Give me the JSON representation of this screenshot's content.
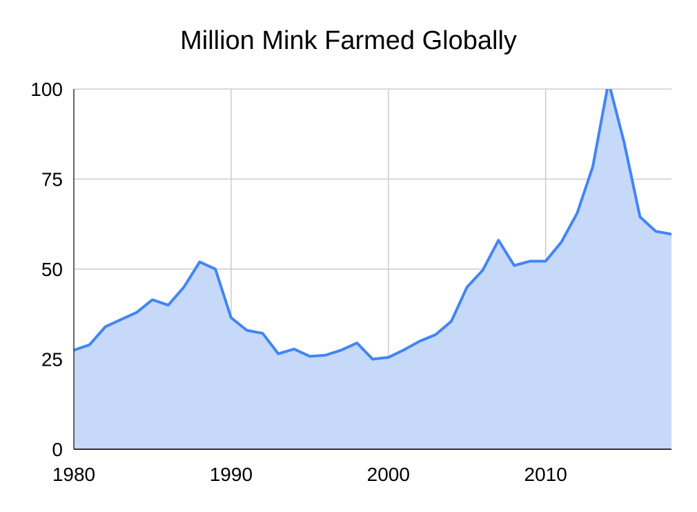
{
  "chart_data": {
    "type": "area",
    "title": "Million Mink Farmed Globally",
    "xlabel": "",
    "ylabel": "",
    "xlim": [
      1980,
      2018
    ],
    "ylim": [
      0,
      100
    ],
    "x_ticks": [
      "1980",
      "1990",
      "2000",
      "2010"
    ],
    "y_ticks": [
      "0",
      "25",
      "50",
      "75",
      "100"
    ],
    "grid": true,
    "legend": "none",
    "x": [
      1980,
      1981,
      1982,
      1983,
      1984,
      1985,
      1986,
      1987,
      1988,
      1989,
      1990,
      1991,
      1992,
      1993,
      1994,
      1995,
      1996,
      1997,
      1998,
      1999,
      2000,
      2001,
      2002,
      2003,
      2004,
      2005,
      2006,
      2007,
      2008,
      2009,
      2010,
      2011,
      2012,
      2013,
      2014,
      2015,
      2016,
      2017,
      2018
    ],
    "series": [
      {
        "values": [
          27.5,
          29,
          34,
          36,
          38,
          41.5,
          40,
          45,
          52,
          50,
          36.5,
          33,
          32.2,
          26.5,
          27.8,
          25.8,
          26.1,
          27.5,
          29.5,
          25,
          25.5,
          27.6,
          30,
          31.8,
          35.5,
          45,
          49.7,
          58,
          51,
          52.2,
          52.2,
          57.5,
          65.5,
          78.5,
          102,
          85,
          64.5,
          60.5,
          59.7
        ],
        "color": "#4285f4",
        "fill": "#c6d9f9"
      }
    ]
  }
}
